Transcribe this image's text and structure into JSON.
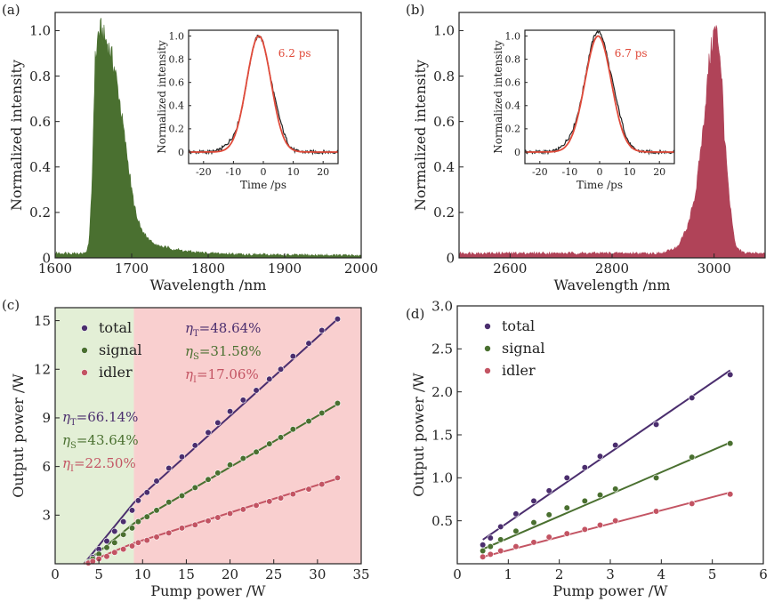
{
  "chart_data": [
    {
      "id": "a",
      "type": "area",
      "panel_label": "(a)",
      "xlabel": "Wavelength /nm",
      "ylabel": "Normalized intensity",
      "xlim": [
        1600,
        2000
      ],
      "ylim": [
        0,
        1.08
      ],
      "xticks": [
        1600,
        1700,
        1800,
        1900,
        2000
      ],
      "xtick_labels": [
        "1600",
        "1700",
        "1800",
        "1900",
        "2000"
      ],
      "yticks": [
        0,
        0.2,
        0.4,
        0.6,
        0.8,
        1.0
      ],
      "ytick_labels": [
        "0",
        "0.2",
        "0.4",
        "0.6",
        "0.8",
        "1.0"
      ],
      "color": "#4a7030",
      "spectrum": {
        "x": [
          1600,
          1640,
          1644,
          1648,
          1652,
          1656,
          1660,
          1664,
          1670,
          1678,
          1686,
          1694,
          1700,
          1704,
          1708,
          1714,
          1720,
          1730,
          1745,
          1760,
          1780,
          1800,
          1850,
          1900,
          2000
        ],
        "y": [
          0.02,
          0.02,
          0.06,
          0.3,
          0.85,
          0.98,
          1.0,
          0.97,
          0.93,
          0.83,
          0.65,
          0.45,
          0.3,
          0.22,
          0.16,
          0.12,
          0.09,
          0.06,
          0.045,
          0.035,
          0.025,
          0.02,
          0.015,
          0.012,
          0.01
        ]
      },
      "inset": {
        "xlabel": "Time /ps",
        "ylabel": "Normalized intensity",
        "xlim": [
          -25,
          25
        ],
        "ylim": [
          -0.1,
          1.05
        ],
        "xticks": [
          -20,
          -10,
          0,
          10,
          20
        ],
        "xtick_labels": [
          "-20",
          "-10",
          "0",
          "10",
          "20"
        ],
        "yticks": [
          0,
          0.2,
          0.4,
          0.6,
          0.8,
          1.0
        ],
        "ytick_labels": [
          "0",
          "0.2",
          "0.4",
          "0.6",
          "0.8",
          "1.0"
        ],
        "annotation": "6.2 ps",
        "center": -1.5,
        "fwhm": 9.6,
        "measured_color": "#222222",
        "fit_color": "#e04a3a"
      }
    },
    {
      "id": "b",
      "type": "area",
      "panel_label": "(b)",
      "xlabel": "Wavelength /nm",
      "ylabel": "Normalized intensity",
      "xlim": [
        2500,
        3100
      ],
      "ylim": [
        0,
        1.08
      ],
      "xticks": [
        2600,
        2800,
        3000
      ],
      "xtick_labels": [
        "2600",
        "2800",
        "3000"
      ],
      "yticks": [
        0,
        0.2,
        0.4,
        0.6,
        0.8,
        1.0
      ],
      "ytick_labels": [
        "0",
        "0.2",
        "0.4",
        "0.6",
        "0.8",
        "1.0"
      ],
      "color": "#b04358",
      "spectrum": {
        "x": [
          2500,
          2900,
          2930,
          2950,
          2965,
          2980,
          2990,
          3000,
          3005,
          3010,
          3015,
          3020,
          3030,
          3040,
          3045,
          3060,
          3100
        ],
        "y": [
          0.02,
          0.02,
          0.05,
          0.15,
          0.3,
          0.6,
          0.85,
          1.0,
          0.99,
          0.93,
          0.8,
          0.55,
          0.25,
          0.08,
          0.04,
          0.02,
          0.02
        ]
      },
      "inset": {
        "xlabel": "Time /ps",
        "ylabel": "Normalized intensity",
        "xlim": [
          -25,
          25
        ],
        "ylim": [
          -0.1,
          1.05
        ],
        "xticks": [
          -20,
          -10,
          0,
          10,
          20
        ],
        "xtick_labels": [
          "-20",
          "-10",
          "0",
          "10",
          "20"
        ],
        "yticks": [
          0,
          0.2,
          0.4,
          0.6,
          0.8,
          1.0
        ],
        "ytick_labels": [
          "0",
          "0.2",
          "0.4",
          "0.6",
          "0.8",
          "1.0"
        ],
        "annotation": "6.7 ps",
        "center": -0.5,
        "fwhm": 10.4,
        "measured_color": "#222222",
        "fit_color": "#e04a3a"
      }
    },
    {
      "id": "c",
      "type": "scatter",
      "panel_label": "(c)",
      "xlabel": "Pump power /W",
      "ylabel": "Output power /W",
      "xlim": [
        0,
        35
      ],
      "ylim": [
        0,
        15.8
      ],
      "xticks": [
        0,
        5,
        10,
        15,
        20,
        25,
        30,
        35
      ],
      "xtick_labels": [
        "0",
        "5",
        "10",
        "15",
        "20",
        "25",
        "30",
        "35"
      ],
      "yticks": [
        3,
        6,
        9,
        12,
        15
      ],
      "ytick_labels": [
        "3",
        "6",
        "9",
        "12",
        "15"
      ],
      "regions": [
        {
          "from": 0,
          "to": 9,
          "color": "#e3efd6"
        },
        {
          "from": 9,
          "to": 35,
          "color": "#f9cfcf"
        }
      ],
      "series": [
        {
          "name": "total",
          "color": "#4b2e6e",
          "x": [
            3.8,
            4.3,
            5.0,
            5.9,
            6.8,
            7.8,
            8.8,
            9.5,
            10.5,
            11.6,
            13.0,
            14.5,
            16.0,
            17.5,
            18.6,
            20.0,
            21.5,
            23.0,
            24.5,
            25.8,
            27.2,
            29.0,
            30.5,
            32.3
          ],
          "y": [
            0.1,
            0.4,
            0.9,
            1.4,
            2.0,
            2.6,
            3.3,
            3.9,
            4.4,
            5.1,
            5.9,
            6.6,
            7.3,
            8.1,
            8.7,
            9.4,
            10.1,
            10.7,
            11.4,
            12.0,
            12.8,
            13.6,
            14.4,
            15.1
          ]
        },
        {
          "name": "signal",
          "color": "#4a7030",
          "x": [
            3.8,
            4.3,
            5.0,
            5.9,
            6.8,
            7.8,
            8.8,
            9.5,
            10.5,
            11.6,
            13.0,
            14.5,
            16.0,
            17.5,
            18.6,
            20.0,
            21.5,
            23.0,
            24.5,
            25.8,
            27.2,
            29.0,
            30.5,
            32.3
          ],
          "y": [
            0.1,
            0.3,
            0.6,
            1.0,
            1.3,
            1.8,
            2.2,
            2.6,
            2.9,
            3.3,
            3.8,
            4.2,
            4.7,
            5.2,
            5.6,
            6.1,
            6.5,
            6.9,
            7.4,
            7.8,
            8.3,
            8.8,
            9.3,
            9.9
          ]
        },
        {
          "name": "idler",
          "color": "#c35463",
          "x": [
            3.8,
            4.3,
            5.0,
            5.9,
            6.8,
            7.8,
            8.8,
            9.5,
            10.5,
            11.6,
            13.0,
            14.5,
            16.0,
            17.5,
            18.6,
            20.0,
            21.5,
            23.0,
            24.5,
            25.8,
            27.2,
            29.0,
            30.5,
            32.3
          ],
          "y": [
            0.05,
            0.15,
            0.3,
            0.45,
            0.7,
            0.9,
            1.1,
            1.3,
            1.45,
            1.65,
            1.9,
            2.2,
            2.4,
            2.65,
            2.85,
            3.1,
            3.35,
            3.6,
            3.85,
            4.05,
            4.3,
            4.6,
            4.9,
            5.3
          ]
        }
      ],
      "fit_lines": [
        {
          "series": "total",
          "x": [
            3.3,
            9.0,
            32.3
          ],
          "y": [
            0.0,
            3.77,
            15.1
          ]
        },
        {
          "series": "signal",
          "x": [
            3.3,
            9.0,
            32.3
          ],
          "y": [
            0.0,
            2.49,
            9.85
          ]
        },
        {
          "series": "idler",
          "x": [
            3.3,
            9.0,
            32.3
          ],
          "y": [
            0.0,
            1.28,
            5.25
          ]
        }
      ],
      "annotations_left": [
        {
          "eta": "η",
          "sub": "T",
          "value": "=66.14%",
          "color": "#4b2e6e"
        },
        {
          "eta": "η",
          "sub": "S",
          "value": "=43.64%",
          "color": "#4a7030"
        },
        {
          "eta": "η",
          "sub": "I",
          "value": "=22.50%",
          "color": "#c35463"
        }
      ],
      "annotations_right": [
        {
          "eta": "η",
          "sub": "T",
          "value": "=48.64%",
          "color": "#4b2e6e"
        },
        {
          "eta": "η",
          "sub": "S",
          "value": "=31.58%",
          "color": "#4a7030"
        },
        {
          "eta": "η",
          "sub": "I",
          "value": "=17.06%",
          "color": "#c35463"
        }
      ],
      "legend": [
        "total",
        "signal",
        "idler"
      ]
    },
    {
      "id": "d",
      "type": "scatter",
      "panel_label": "(d)",
      "xlabel": "Pump power /W",
      "ylabel": "Output power /W",
      "xlim": [
        0,
        6
      ],
      "ylim": [
        0,
        3.0
      ],
      "xticks": [
        0,
        1,
        2,
        3,
        4,
        5,
        6
      ],
      "xtick_labels": [
        "0",
        "1",
        "2",
        "3",
        "4",
        "5",
        "6"
      ],
      "yticks": [
        0.5,
        1.0,
        1.5,
        2.0,
        2.5,
        3.0
      ],
      "ytick_labels": [
        "0.5",
        "1.0",
        "1.5",
        "2.0",
        "2.5",
        "3.0"
      ],
      "series": [
        {
          "name": "total",
          "color": "#4b2e6e",
          "x": [
            0.5,
            0.65,
            0.85,
            1.15,
            1.5,
            1.8,
            2.15,
            2.5,
            2.8,
            3.1,
            3.9,
            4.6,
            5.35
          ],
          "y": [
            0.22,
            0.3,
            0.43,
            0.58,
            0.73,
            0.85,
            1.0,
            1.12,
            1.25,
            1.38,
            1.62,
            1.93,
            2.2
          ]
        },
        {
          "name": "signal",
          "color": "#4a7030",
          "x": [
            0.5,
            0.65,
            0.85,
            1.15,
            1.5,
            1.8,
            2.15,
            2.5,
            2.8,
            3.1,
            3.9,
            4.6,
            5.35
          ],
          "y": [
            0.15,
            0.2,
            0.28,
            0.38,
            0.48,
            0.57,
            0.65,
            0.73,
            0.8,
            0.87,
            1.0,
            1.24,
            1.4
          ]
        },
        {
          "name": "idler",
          "color": "#c35463",
          "x": [
            0.5,
            0.65,
            0.85,
            1.15,
            1.5,
            1.8,
            2.15,
            2.5,
            2.8,
            3.1,
            3.9,
            4.6,
            5.35
          ],
          "y": [
            0.08,
            0.11,
            0.15,
            0.2,
            0.25,
            0.31,
            0.35,
            0.4,
            0.45,
            0.5,
            0.61,
            0.7,
            0.81
          ]
        }
      ],
      "fit_lines": [
        {
          "series": "total",
          "x": [
            0.5,
            5.35
          ],
          "y": [
            0.28,
            2.25
          ]
        },
        {
          "series": "signal",
          "x": [
            0.5,
            5.35
          ],
          "y": [
            0.17,
            1.41
          ]
        },
        {
          "series": "idler",
          "x": [
            0.5,
            5.35
          ],
          "y": [
            0.08,
            0.83
          ]
        }
      ],
      "legend": [
        "total",
        "signal",
        "idler"
      ]
    }
  ]
}
